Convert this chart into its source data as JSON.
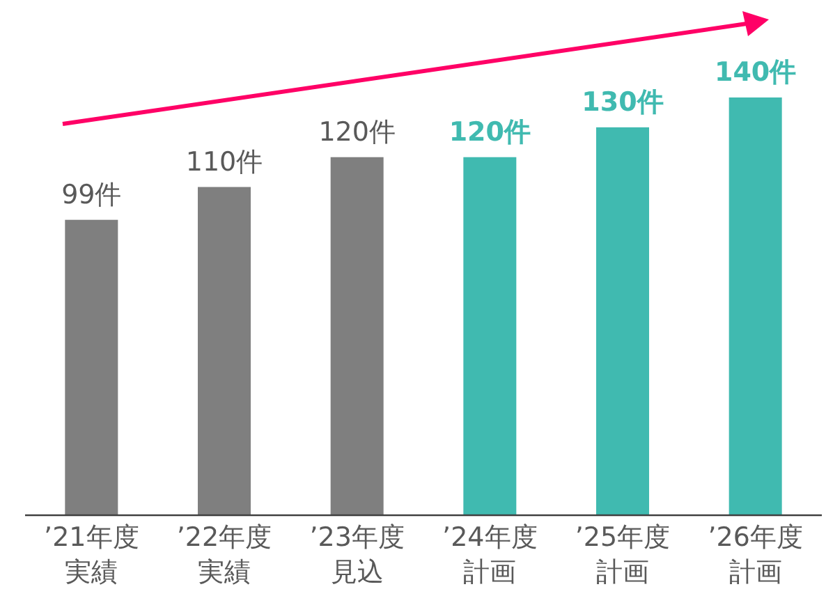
{
  "chart_data": {
    "type": "bar",
    "categories": [
      "’21年度実績",
      "’22年度実績",
      "’23年度見込",
      "’24年度計画",
      "’25年度計画",
      "’26年度計画"
    ],
    "values": [
      99,
      110,
      120,
      120,
      130,
      140
    ],
    "colors": [
      "#7f7f7f",
      "#7f7f7f",
      "#7f7f7f",
      "#40bab0",
      "#40bab0",
      "#40bab0"
    ],
    "value_labels": [
      "99件",
      "110件",
      "120件",
      "120件",
      "130件",
      "140件"
    ]
  }
}
